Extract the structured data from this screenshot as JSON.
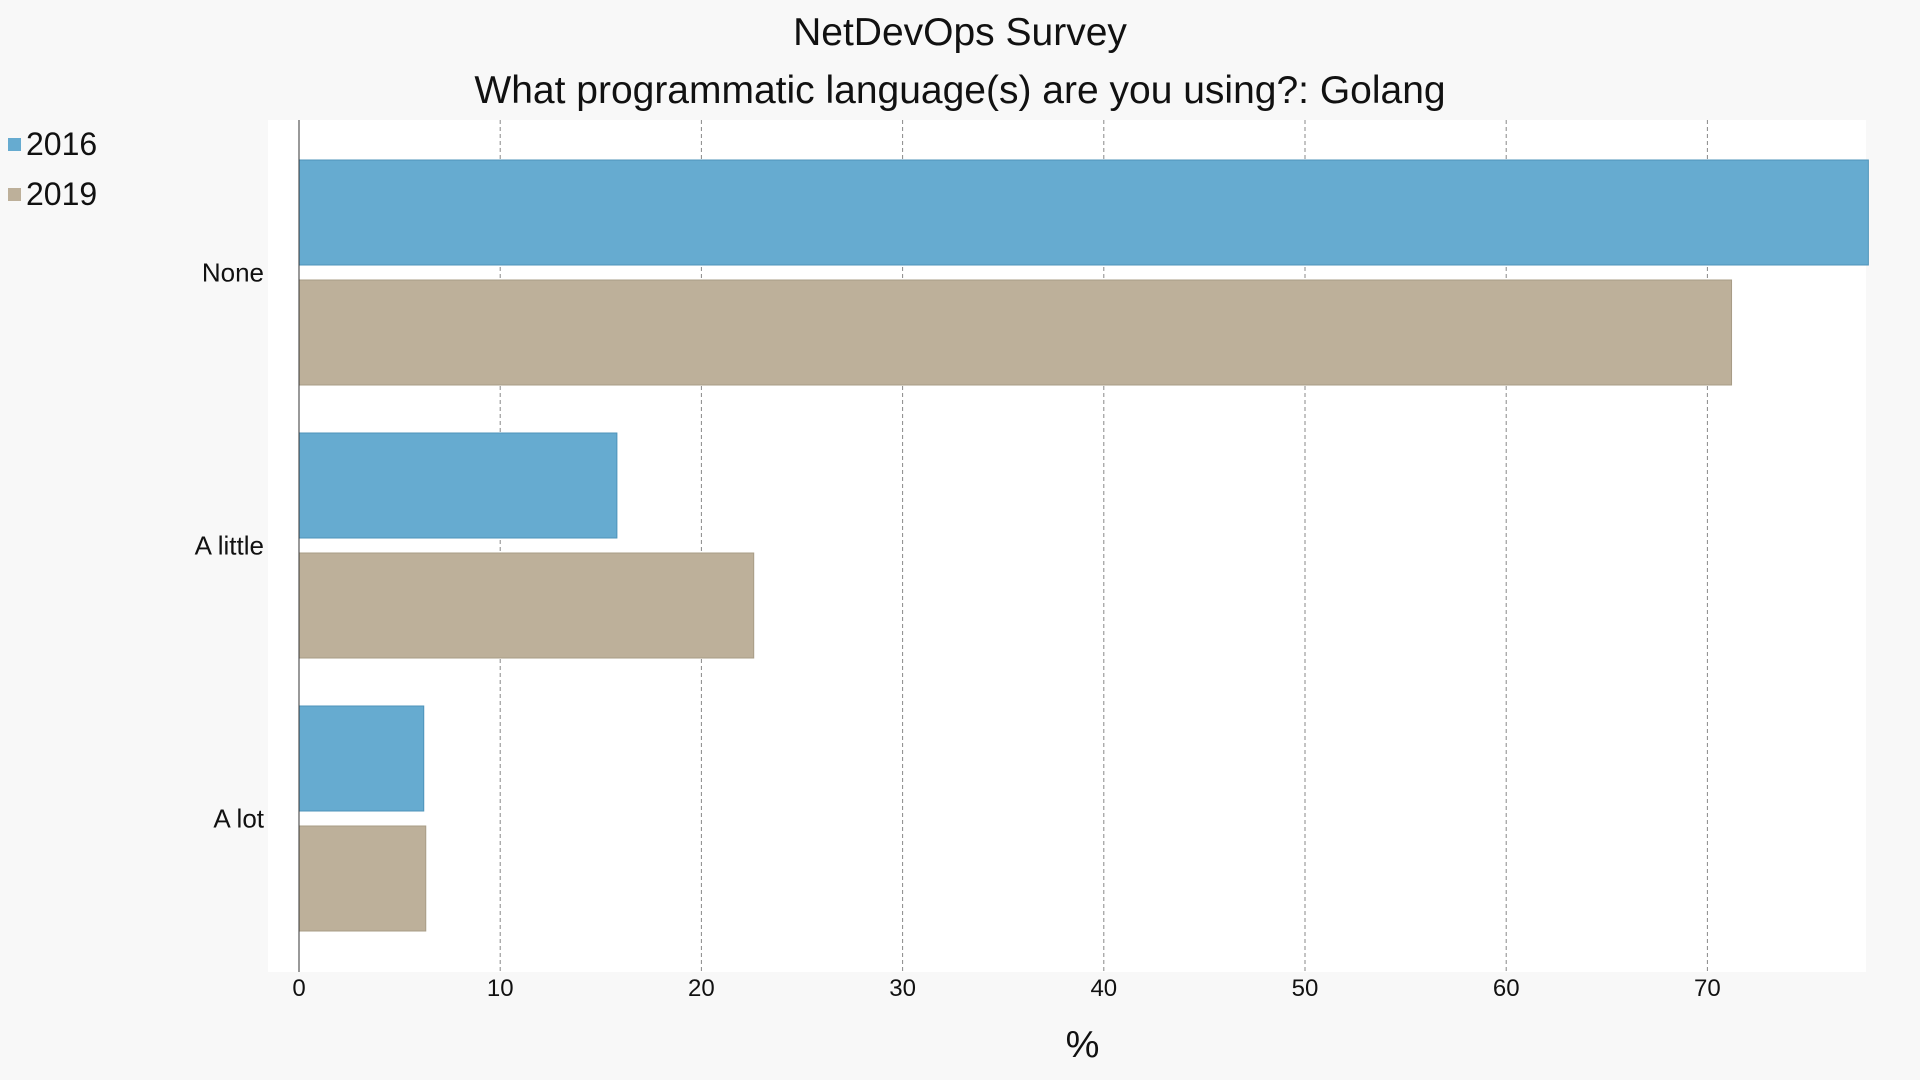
{
  "chart_data": {
    "type": "bar",
    "orientation": "horizontal",
    "title": "NetDevOps Survey",
    "subtitle": "What programmatic language(s) are you using?: Golang",
    "xlabel": "%",
    "ylabel": "",
    "categories": [
      "None",
      "A little",
      "A lot"
    ],
    "series": [
      {
        "name": "2016",
        "color": "#66abd0",
        "values": [
          78.0,
          15.8,
          6.2
        ]
      },
      {
        "name": "2019",
        "color": "#bdb09a",
        "values": [
          71.2,
          22.6,
          6.3
        ]
      }
    ],
    "xlim": [
      0,
      79
    ],
    "x_ticks": [
      0,
      10,
      20,
      30,
      40,
      50,
      60,
      70
    ],
    "grid": "vertical dashed",
    "legend_position": "top-left"
  }
}
